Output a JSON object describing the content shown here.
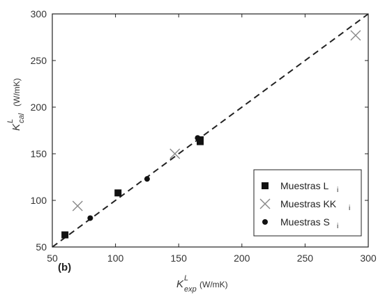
{
  "chart_data": {
    "type": "scatter",
    "panel_label": "(b)",
    "x_axis": {
      "label_main": "K",
      "label_sup": "L",
      "label_sub": "exp",
      "label_unit": "(W/mK)",
      "range": [
        50,
        300
      ],
      "ticks": [
        50,
        100,
        150,
        200,
        250,
        300
      ]
    },
    "y_axis": {
      "label_main": "K",
      "label_sup": "L",
      "label_sub": "cal",
      "label_unit": "(W/mK)",
      "range": [
        50,
        300
      ],
      "ticks": [
        50,
        100,
        150,
        200,
        250,
        300
      ]
    },
    "reference_line": {
      "style": "dashed",
      "x": [
        50,
        300
      ],
      "y": [
        50,
        300
      ]
    },
    "series": [
      {
        "name": "Muestras L",
        "name_sub": "i",
        "marker": "square",
        "color": "#111111",
        "points": [
          [
            60,
            63
          ],
          [
            102,
            108
          ],
          [
            167,
            163
          ],
          [
            167,
            165
          ]
        ]
      },
      {
        "name": "Muestras KK",
        "name_sub": "i",
        "marker": "x",
        "color": "#888888",
        "points": [
          [
            70,
            94
          ],
          [
            147,
            150
          ],
          [
            290,
            277
          ]
        ]
      },
      {
        "name": "Muestras S",
        "name_sub": "i",
        "marker": "circle",
        "color": "#111111",
        "points": [
          [
            80,
            81
          ],
          [
            125,
            123
          ],
          [
            165,
            167
          ]
        ]
      }
    ],
    "legend_position": "lower-right",
    "grid": false
  }
}
